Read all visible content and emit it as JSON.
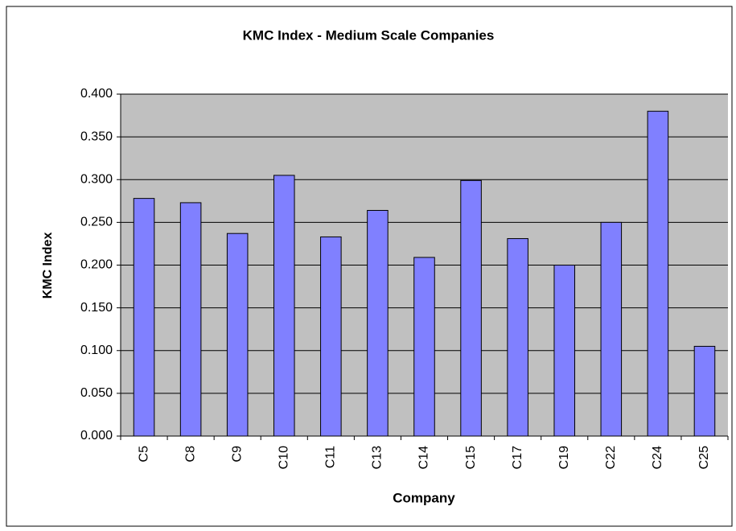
{
  "chart_data": {
    "type": "bar",
    "title": "KMC Index - Medium Scale Companies",
    "x_label": "Company",
    "y_label": "KMC Index",
    "categories": [
      "C5",
      "C8",
      "C9",
      "C10",
      "C11",
      "C13",
      "C14",
      "C15",
      "C17",
      "C19",
      "C22",
      "C24",
      "C25"
    ],
    "values": [
      0.278,
      0.273,
      0.237,
      0.305,
      0.233,
      0.264,
      0.209,
      0.299,
      0.231,
      0.2,
      0.25,
      0.38,
      0.105
    ],
    "color": "#8080ff",
    "ylim": [
      0,
      0.4
    ],
    "yticks": [
      {
        "value": 0,
        "label": "0.000"
      },
      {
        "value": 0.05,
        "label": "0.050"
      },
      {
        "value": 0.1,
        "label": "0.100"
      },
      {
        "value": 0.15,
        "label": "0.150"
      },
      {
        "value": 0.2,
        "label": "0.200"
      },
      {
        "value": 0.25,
        "label": "0.250"
      },
      {
        "value": 0.3,
        "label": "0.300"
      },
      {
        "value": 0.35,
        "label": "0.350"
      },
      {
        "value": 0.4,
        "label": "0.400"
      }
    ],
    "grid": true
  }
}
